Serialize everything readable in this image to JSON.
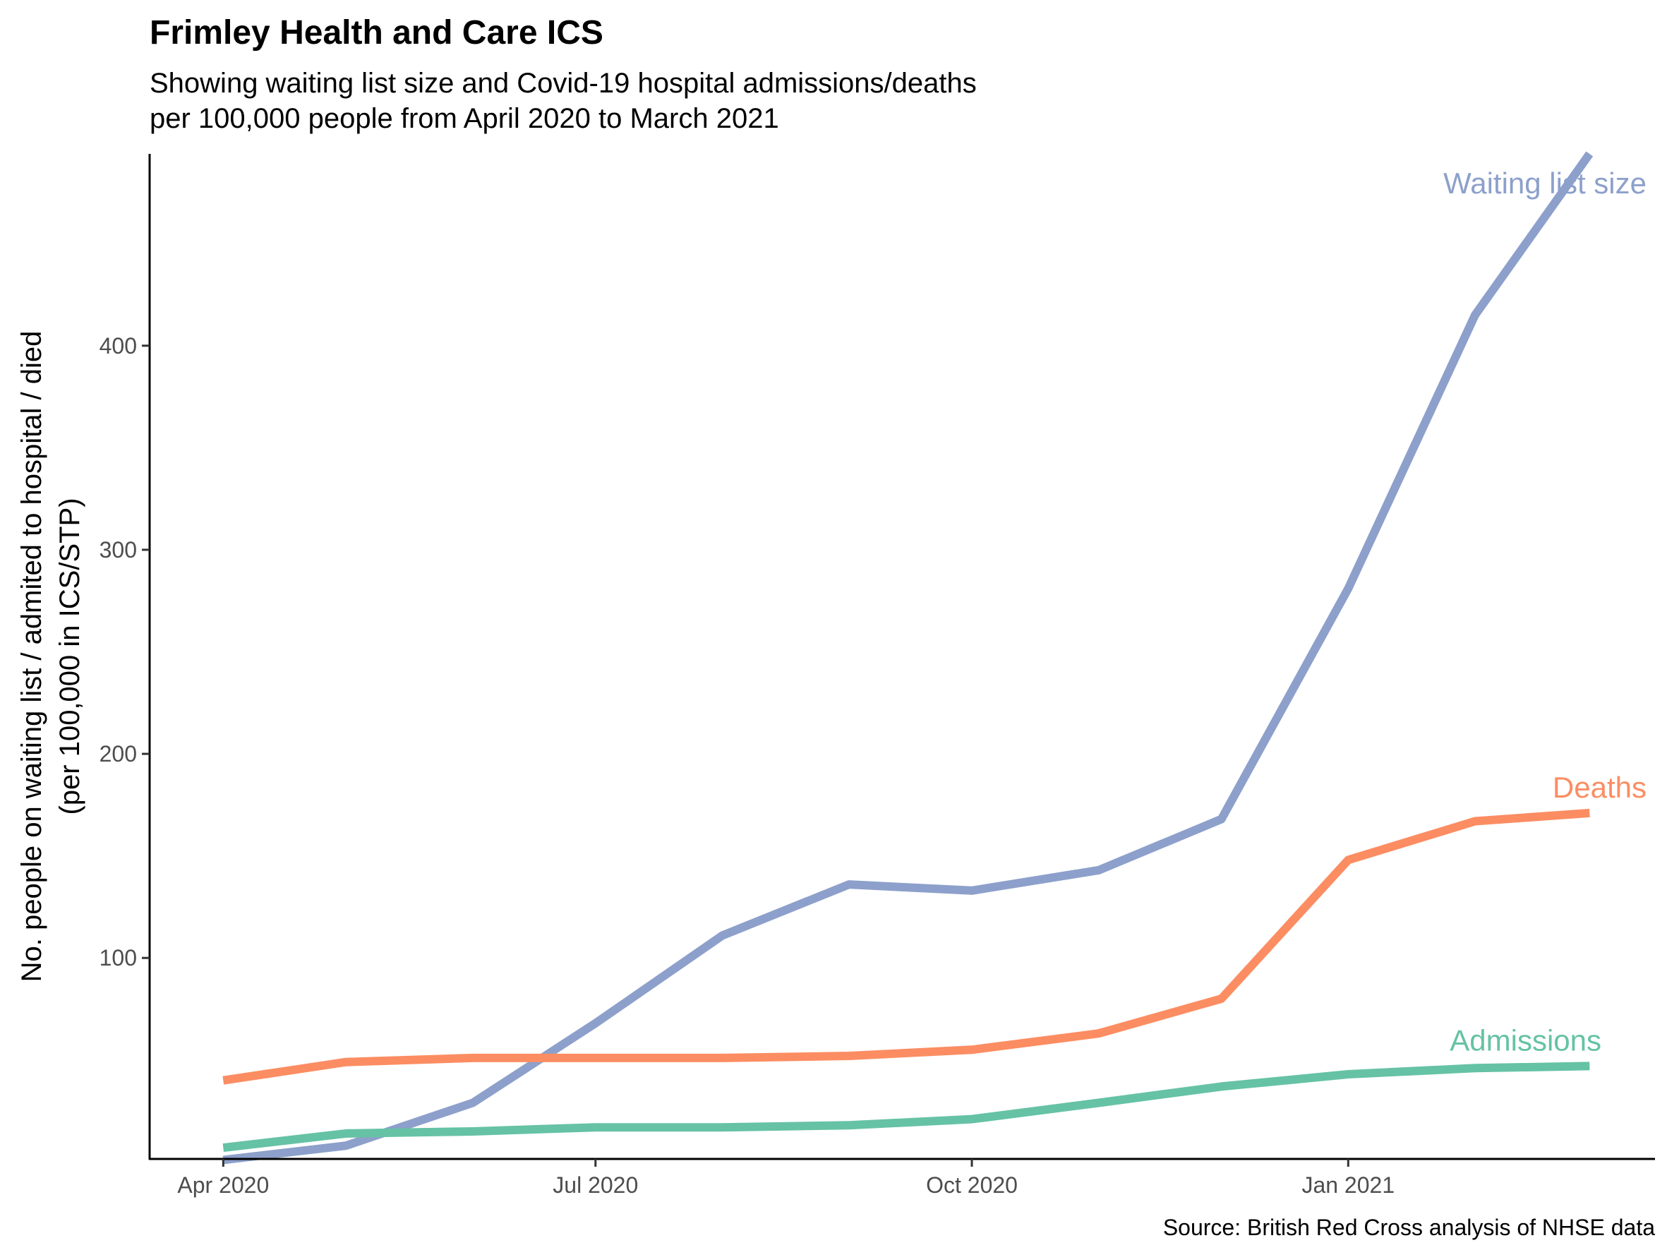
{
  "chart_data": {
    "type": "line",
    "title": "Frimley Health and Care ICS",
    "subtitle_lines": [
      "Showing waiting list size and Covid-19 hospital admissions/deaths",
      "per 100,000 people from April 2020 to March 2021"
    ],
    "ylabel_lines": [
      "No. people on waiting list / admited to hospital / died",
      "(per 100,000 in ICS/STP)"
    ],
    "xlabel": "",
    "caption": "Source: British Red Cross analysis of NHSE data",
    "x": [
      "2020-04-01",
      "2020-05-01",
      "2020-06-01",
      "2020-07-01",
      "2020-08-01",
      "2020-09-01",
      "2020-10-01",
      "2020-11-01",
      "2020-12-01",
      "2021-01-01",
      "2021-02-01",
      "2021-03-01"
    ],
    "x_ticks": [
      {
        "date": "2020-04-01",
        "label": "Apr 2020"
      },
      {
        "date": "2020-07-01",
        "label": "Jul 2020"
      },
      {
        "date": "2020-10-01",
        "label": "Oct 2020"
      },
      {
        "date": "2021-01-01",
        "label": "Jan 2021"
      }
    ],
    "y_ticks": [
      100,
      200,
      300,
      400
    ],
    "ylim": [
      1.5,
      494
    ],
    "xlim": [
      "2020-03-14",
      "2021-03-17"
    ],
    "grid": false,
    "legend": "none (direct labels at line ends)",
    "series": [
      {
        "name": "Waiting list size",
        "color": "#8DA0CB",
        "values": [
          1,
          8,
          29,
          68,
          111,
          136,
          133,
          143,
          168,
          281,
          415,
          494
        ]
      },
      {
        "name": "Deaths",
        "color": "#FC8D62",
        "values": [
          40,
          49,
          51,
          51,
          51,
          52,
          55,
          63,
          80,
          148,
          167,
          171
        ]
      },
      {
        "name": "Admissions",
        "color": "#66C2A5",
        "values": [
          7,
          14,
          15,
          17,
          17,
          18,
          21,
          29,
          37,
          43,
          46,
          47
        ]
      }
    ]
  }
}
